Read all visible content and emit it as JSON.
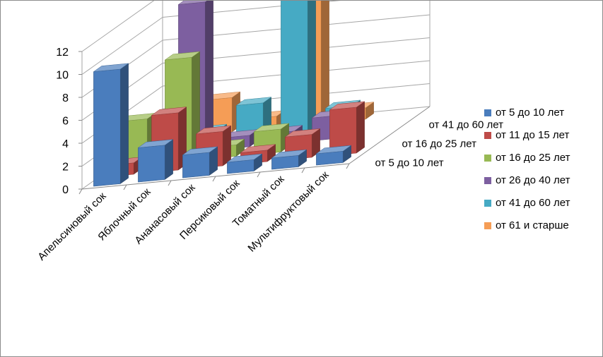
{
  "chart_data": {
    "type": "bar",
    "subtype": "3d-column",
    "title": "",
    "categories": [
      "Апельсиновый сок",
      "Яблочный сок",
      "Ананасовый сок",
      "Персиковый сок",
      "Томатный сок",
      "Мультифруктовый сок"
    ],
    "depth_labels": [
      "от 5 до 10 лет",
      "от 16 до 25 лет",
      "от 41 до 60 лет"
    ],
    "ylim": [
      0,
      12
    ],
    "yticks": [
      "0",
      "2",
      "4",
      "6",
      "8",
      "10",
      "12"
    ],
    "grid": true,
    "legend_position": "right",
    "series": [
      {
        "name": "от 5 до 10 лет",
        "color": "#4a7dbd",
        "values": [
          10,
          3,
          2,
          1,
          1,
          1
        ]
      },
      {
        "name": "от 11 до 15 лет",
        "color": "#be4b48",
        "values": [
          1,
          5,
          3,
          1,
          2,
          4
        ]
      },
      {
        "name": "от 16 до 25 лет",
        "color": "#98b954",
        "values": [
          4,
          9,
          1,
          2,
          0,
          0
        ]
      },
      {
        "name": "от 26 до 40 лет",
        "color": "#7d5fa0",
        "values": [
          0,
          13,
          1,
          1,
          2,
          0
        ]
      },
      {
        "name": "от 41 до 60 лет",
        "color": "#46aac4",
        "values": [
          0,
          1,
          3,
          12,
          2,
          0
        ]
      },
      {
        "name": "от 61 и старше",
        "color": "#f59d56",
        "values": [
          1,
          3,
          1,
          12,
          1,
          0
        ]
      }
    ]
  }
}
